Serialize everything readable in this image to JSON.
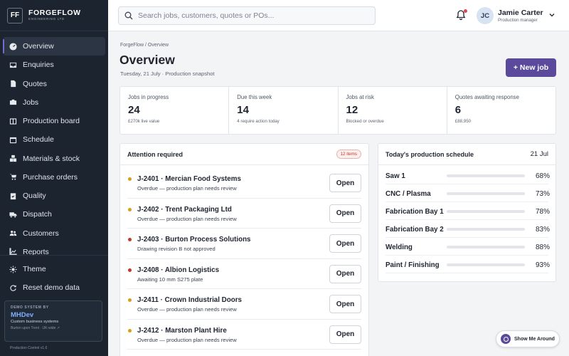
{
  "brand": {
    "mark": "FF",
    "name": "FORGEFLOW",
    "sub": "ENGINEERING LTD"
  },
  "nav": [
    {
      "label": "Overview",
      "icon": "dashboard-icon",
      "active": true
    },
    {
      "label": "Enquiries",
      "icon": "inbox-icon"
    },
    {
      "label": "Quotes",
      "icon": "document-icon"
    },
    {
      "label": "Jobs",
      "icon": "briefcase-icon"
    },
    {
      "label": "Production board",
      "icon": "board-icon"
    },
    {
      "label": "Schedule",
      "icon": "calendar-icon"
    },
    {
      "label": "Materials & stock",
      "icon": "boxes-icon"
    },
    {
      "label": "Purchase orders",
      "icon": "cart-icon"
    },
    {
      "label": "Quality",
      "icon": "clipboard-check-icon"
    },
    {
      "label": "Dispatch",
      "icon": "truck-icon"
    },
    {
      "label": "Customers",
      "icon": "users-icon"
    },
    {
      "label": "Reports",
      "icon": "chart-icon"
    }
  ],
  "utility": {
    "theme": "Theme",
    "reset": "Reset demo data"
  },
  "demo": {
    "label": "DEMO SYSTEM BY",
    "name": "MHDev",
    "desc": "Custom business systems",
    "loc": "Burton upon Trent · UK-wide ↗"
  },
  "version": "Production Control v1.0",
  "search": {
    "placeholder": "Search jobs, customers, quotes or POs..."
  },
  "user": {
    "initials": "JC",
    "name": "Jamie Carter",
    "role": "Production manager"
  },
  "breadcrumb": "ForgeFlow / Overview",
  "page": {
    "title": "Overview",
    "subtitle": "Tuesday, 21 July · Production snapshot",
    "new_job": "+ New job"
  },
  "stats": [
    {
      "label": "Jobs in progress",
      "value": "24",
      "note": "£270k live value"
    },
    {
      "label": "Due this week",
      "value": "14",
      "note": "4 require action today"
    },
    {
      "label": "Jobs at risk",
      "value": "12",
      "note": "Blocked or overdue"
    },
    {
      "label": "Quotes awaiting response",
      "value": "6",
      "note": "£88,950"
    }
  ],
  "attention": {
    "title": "Attention required",
    "badge": "12 items",
    "open_label": "Open",
    "items": [
      {
        "title": "J-2401 · Mercian Food Systems",
        "desc": "Overdue — production plan needs review",
        "color": "#d4a017"
      },
      {
        "title": "J-2402 · Trent Packaging Ltd",
        "desc": "Overdue — production plan needs review",
        "color": "#d4a017"
      },
      {
        "title": "J-2403 · Burton Process Solutions",
        "desc": "Drawing revision B not approved",
        "color": "#c0392b"
      },
      {
        "title": "J-2408 · Albion Logistics",
        "desc": "Awaiting 10 mm S275 plate",
        "color": "#c0392b"
      },
      {
        "title": "J-2411 · Crown Industrial Doors",
        "desc": "Overdue — production plan needs review",
        "color": "#d4a017"
      },
      {
        "title": "J-2412 · Marston Plant Hire",
        "desc": "Overdue — production plan needs review",
        "color": "#d4a017"
      }
    ]
  },
  "schedule": {
    "title": "Today's production schedule",
    "date": "21 Jul",
    "rows": [
      {
        "name": "Saw 1",
        "pct_label": "68%",
        "value": 68
      },
      {
        "name": "CNC / Plasma",
        "pct_label": "73%",
        "value": 73
      },
      {
        "name": "Fabrication Bay 1",
        "pct_label": "78%",
        "value": 78
      },
      {
        "name": "Fabrication Bay 2",
        "pct_label": "83%",
        "value": 83
      },
      {
        "name": "Welding",
        "pct_label": "88%",
        "value": 88
      },
      {
        "name": "Paint / Finishing",
        "pct_label": "93%",
        "value": 93
      }
    ]
  },
  "tour": {
    "label": "Show Me Around"
  },
  "colors": {
    "accent": "#5b4a9c",
    "sidebar": "#1c2430",
    "warning": "#d4a017",
    "danger": "#c0392b"
  }
}
